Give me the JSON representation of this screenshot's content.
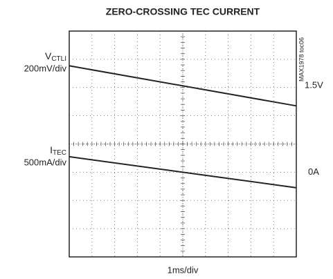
{
  "chart_data": {
    "type": "line",
    "title": "ZERO-CROSSING TEC CURRENT",
    "figure_code": "MAX1978 toc06",
    "x_label": "1ms/div",
    "x": [
      0,
      10
    ],
    "xlim": [
      0,
      10
    ],
    "ylim": [
      0,
      8
    ],
    "xticks": [
      0,
      1,
      2,
      3,
      4,
      5,
      6,
      7,
      8,
      9,
      10
    ],
    "yticks": [
      0,
      1,
      2,
      3,
      4,
      5,
      6,
      7,
      8
    ],
    "grid": true,
    "series": [
      {
        "symbol": "V",
        "subscript": "CTLI",
        "scale": "200mV/div",
        "level": "1.5V",
        "color": "#222",
        "values": [
          6.77,
          5.35
        ]
      },
      {
        "symbol": "I",
        "subscript": "TEC",
        "scale": "500mA/div",
        "level": "0A",
        "color": "#222",
        "values": [
          3.55,
          2.45
        ]
      }
    ]
  }
}
